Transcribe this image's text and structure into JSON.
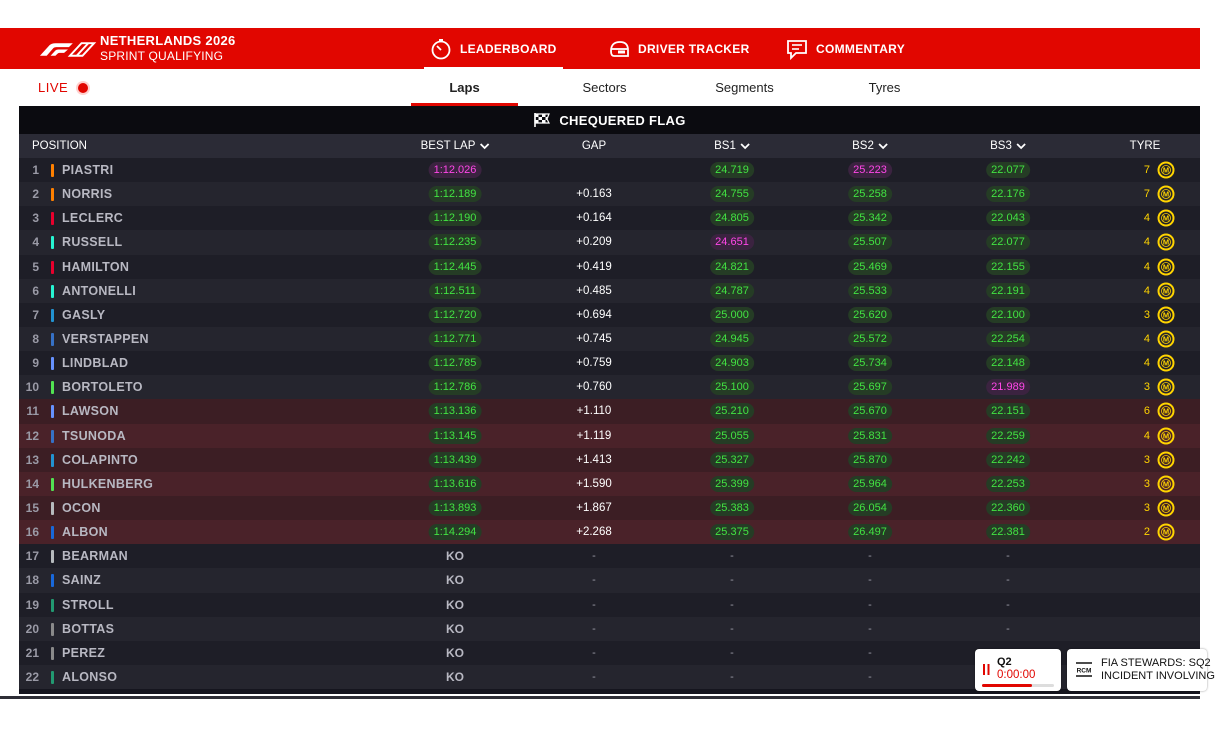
{
  "header": {
    "event_title": "NETHERLANDS 2026",
    "session_name": "SPRINT QUALIFYING",
    "logo_icon": "f1-logo-icon",
    "nav": [
      {
        "label": "LEADERBOARD",
        "icon": "stopwatch-icon",
        "active": true
      },
      {
        "label": "DRIVER TRACKER",
        "icon": "helmet-icon",
        "active": false
      },
      {
        "label": "COMMENTARY",
        "icon": "chat-icon",
        "active": false
      }
    ]
  },
  "subbar": {
    "live_label": "LIVE",
    "tabs": [
      {
        "label": "Laps",
        "active": true
      },
      {
        "label": "Sectors",
        "active": false
      },
      {
        "label": "Segments",
        "active": false
      },
      {
        "label": "Tyres",
        "active": false
      }
    ]
  },
  "flag": {
    "label": "CHEQUERED FLAG",
    "icon": "chequered-flag-icon"
  },
  "columns": {
    "position": "POSITION",
    "best_lap": "BEST LAP",
    "gap": "GAP",
    "bs1": "BS1",
    "bs2": "BS2",
    "bs3": "BS3",
    "tyre": "TYRE"
  },
  "colors": {
    "accent": "#e10600",
    "personal_best": "#42e342",
    "overall_best": "#ff47e8",
    "tyre": "#ffd400"
  },
  "drivers": [
    {
      "pos": "1",
      "name": "PIASTRI",
      "team_color": "#ff8000",
      "best": "1:12.026",
      "best_c": "purple",
      "gap": "",
      "bs1": "24.719",
      "bs1_c": "green",
      "bs2": "25.223",
      "bs2_c": "purple",
      "bs3": "22.077",
      "bs3_c": "green",
      "tyre_age": "7",
      "tyre": "medium-tyre-icon",
      "elim": false
    },
    {
      "pos": "2",
      "name": "NORRIS",
      "team_color": "#ff8000",
      "best": "1:12.189",
      "best_c": "green",
      "gap": "+0.163",
      "bs1": "24.755",
      "bs1_c": "green",
      "bs2": "25.258",
      "bs2_c": "green",
      "bs3": "22.176",
      "bs3_c": "green",
      "tyre_age": "7",
      "tyre": "medium-tyre-icon",
      "elim": false
    },
    {
      "pos": "3",
      "name": "LECLERC",
      "team_color": "#e8002d",
      "best": "1:12.190",
      "best_c": "green",
      "gap": "+0.164",
      "bs1": "24.805",
      "bs1_c": "green",
      "bs2": "25.342",
      "bs2_c": "green",
      "bs3": "22.043",
      "bs3_c": "green",
      "tyre_age": "4",
      "tyre": "medium-tyre-icon",
      "elim": false
    },
    {
      "pos": "4",
      "name": "RUSSELL",
      "team_color": "#27f4d2",
      "best": "1:12.235",
      "best_c": "green",
      "gap": "+0.209",
      "bs1": "24.651",
      "bs1_c": "purple",
      "bs2": "25.507",
      "bs2_c": "green",
      "bs3": "22.077",
      "bs3_c": "green",
      "tyre_age": "4",
      "tyre": "medium-tyre-icon",
      "elim": false
    },
    {
      "pos": "5",
      "name": "HAMILTON",
      "team_color": "#e8002d",
      "best": "1:12.445",
      "best_c": "green",
      "gap": "+0.419",
      "bs1": "24.821",
      "bs1_c": "green",
      "bs2": "25.469",
      "bs2_c": "green",
      "bs3": "22.155",
      "bs3_c": "green",
      "tyre_age": "4",
      "tyre": "medium-tyre-icon",
      "elim": false
    },
    {
      "pos": "6",
      "name": "ANTONELLI",
      "team_color": "#27f4d2",
      "best": "1:12.511",
      "best_c": "green",
      "gap": "+0.485",
      "bs1": "24.787",
      "bs1_c": "green",
      "bs2": "25.533",
      "bs2_c": "green",
      "bs3": "22.191",
      "bs3_c": "green",
      "tyre_age": "4",
      "tyre": "medium-tyre-icon",
      "elim": false
    },
    {
      "pos": "7",
      "name": "GASLY",
      "team_color": "#2293d1",
      "best": "1:12.720",
      "best_c": "green",
      "gap": "+0.694",
      "bs1": "25.000",
      "bs1_c": "green",
      "bs2": "25.620",
      "bs2_c": "green",
      "bs3": "22.100",
      "bs3_c": "green",
      "tyre_age": "3",
      "tyre": "medium-tyre-icon",
      "elim": false
    },
    {
      "pos": "8",
      "name": "VERSTAPPEN",
      "team_color": "#3671c6",
      "best": "1:12.771",
      "best_c": "green",
      "gap": "+0.745",
      "bs1": "24.945",
      "bs1_c": "green",
      "bs2": "25.572",
      "bs2_c": "green",
      "bs3": "22.254",
      "bs3_c": "green",
      "tyre_age": "4",
      "tyre": "medium-tyre-icon",
      "elim": false
    },
    {
      "pos": "9",
      "name": "LINDBLAD",
      "team_color": "#6692ff",
      "best": "1:12.785",
      "best_c": "green",
      "gap": "+0.759",
      "bs1": "24.903",
      "bs1_c": "green",
      "bs2": "25.734",
      "bs2_c": "green",
      "bs3": "22.148",
      "bs3_c": "green",
      "tyre_age": "4",
      "tyre": "medium-tyre-icon",
      "elim": false
    },
    {
      "pos": "10",
      "name": "BORTOLETO",
      "team_color": "#52e252",
      "best": "1:12.786",
      "best_c": "green",
      "gap": "+0.760",
      "bs1": "25.100",
      "bs1_c": "green",
      "bs2": "25.697",
      "bs2_c": "green",
      "bs3": "21.989",
      "bs3_c": "purple",
      "tyre_age": "3",
      "tyre": "medium-tyre-icon",
      "elim": false
    },
    {
      "pos": "11",
      "name": "LAWSON",
      "team_color": "#6692ff",
      "best": "1:13.136",
      "best_c": "green",
      "gap": "+1.110",
      "bs1": "25.210",
      "bs1_c": "green",
      "bs2": "25.670",
      "bs2_c": "green",
      "bs3": "22.151",
      "bs3_c": "green",
      "tyre_age": "6",
      "tyre": "medium-tyre-icon",
      "elim": true
    },
    {
      "pos": "12",
      "name": "TSUNODA",
      "team_color": "#3671c6",
      "best": "1:13.145",
      "best_c": "green",
      "gap": "+1.119",
      "bs1": "25.055",
      "bs1_c": "green",
      "bs2": "25.831",
      "bs2_c": "green",
      "bs3": "22.259",
      "bs3_c": "green",
      "tyre_age": "4",
      "tyre": "medium-tyre-icon",
      "elim": true
    },
    {
      "pos": "13",
      "name": "COLAPINTO",
      "team_color": "#2293d1",
      "best": "1:13.439",
      "best_c": "green",
      "gap": "+1.413",
      "bs1": "25.327",
      "bs1_c": "green",
      "bs2": "25.870",
      "bs2_c": "green",
      "bs3": "22.242",
      "bs3_c": "green",
      "tyre_age": "3",
      "tyre": "medium-tyre-icon",
      "elim": true
    },
    {
      "pos": "14",
      "name": "HULKENBERG",
      "team_color": "#52e252",
      "best": "1:13.616",
      "best_c": "green",
      "gap": "+1.590",
      "bs1": "25.399",
      "bs1_c": "green",
      "bs2": "25.964",
      "bs2_c": "green",
      "bs3": "22.253",
      "bs3_c": "green",
      "tyre_age": "3",
      "tyre": "medium-tyre-icon",
      "elim": true
    },
    {
      "pos": "15",
      "name": "OCON",
      "team_color": "#b6babd",
      "best": "1:13.893",
      "best_c": "green",
      "gap": "+1.867",
      "bs1": "25.383",
      "bs1_c": "green",
      "bs2": "26.054",
      "bs2_c": "green",
      "bs3": "22.360",
      "bs3_c": "green",
      "tyre_age": "3",
      "tyre": "medium-tyre-icon",
      "elim": true
    },
    {
      "pos": "16",
      "name": "ALBON",
      "team_color": "#1868db",
      "best": "1:14.294",
      "best_c": "green",
      "gap": "+2.268",
      "bs1": "25.375",
      "bs1_c": "green",
      "bs2": "26.497",
      "bs2_c": "green",
      "bs3": "22.381",
      "bs3_c": "green",
      "tyre_age": "2",
      "tyre": "medium-tyre-icon",
      "elim": true
    },
    {
      "pos": "17",
      "name": "BEARMAN",
      "team_color": "#b6babd",
      "best": "KO",
      "best_c": "ko",
      "gap": "-",
      "bs1": "-",
      "bs1_c": "dash",
      "bs2": "-",
      "bs2_c": "dash",
      "bs3": "-",
      "bs3_c": "dash",
      "tyre_age": "",
      "tyre": "",
      "elim": false
    },
    {
      "pos": "18",
      "name": "SAINZ",
      "team_color": "#1868db",
      "best": "KO",
      "best_c": "ko",
      "gap": "-",
      "bs1": "-",
      "bs1_c": "dash",
      "bs2": "-",
      "bs2_c": "dash",
      "bs3": "-",
      "bs3_c": "dash",
      "tyre_age": "",
      "tyre": "",
      "elim": false
    },
    {
      "pos": "19",
      "name": "STROLL",
      "team_color": "#229971",
      "best": "KO",
      "best_c": "ko",
      "gap": "-",
      "bs1": "-",
      "bs1_c": "dash",
      "bs2": "-",
      "bs2_c": "dash",
      "bs3": "-",
      "bs3_c": "dash",
      "tyre_age": "",
      "tyre": "",
      "elim": false
    },
    {
      "pos": "20",
      "name": "BOTTAS",
      "team_color": "#8a8a8a",
      "best": "KO",
      "best_c": "ko",
      "gap": "-",
      "bs1": "-",
      "bs1_c": "dash",
      "bs2": "-",
      "bs2_c": "dash",
      "bs3": "-",
      "bs3_c": "dash",
      "tyre_age": "",
      "tyre": "",
      "elim": false
    },
    {
      "pos": "21",
      "name": "PEREZ",
      "team_color": "#8a8a8a",
      "best": "KO",
      "best_c": "ko",
      "gap": "-",
      "bs1": "-",
      "bs1_c": "dash",
      "bs2": "-",
      "bs2_c": "dash",
      "bs3": "-",
      "bs3_c": "dash",
      "tyre_age": "",
      "tyre": "",
      "elim": false
    },
    {
      "pos": "22",
      "name": "ALONSO",
      "team_color": "#229971",
      "best": "KO",
      "best_c": "ko",
      "gap": "-",
      "bs1": "-",
      "bs1_c": "dash",
      "bs2": "-",
      "bs2_c": "dash",
      "bs3": "-",
      "bs3_c": "dash",
      "tyre_age": "",
      "tyre": "",
      "elim": false
    }
  ],
  "session_timer": {
    "label": "Q2",
    "time": "0:00:00",
    "progress": 0.7
  },
  "race_control": {
    "label": "RCM",
    "message": "FIA STEWARDS: SQ2",
    "message2": "INCIDENT INVOLVING"
  }
}
